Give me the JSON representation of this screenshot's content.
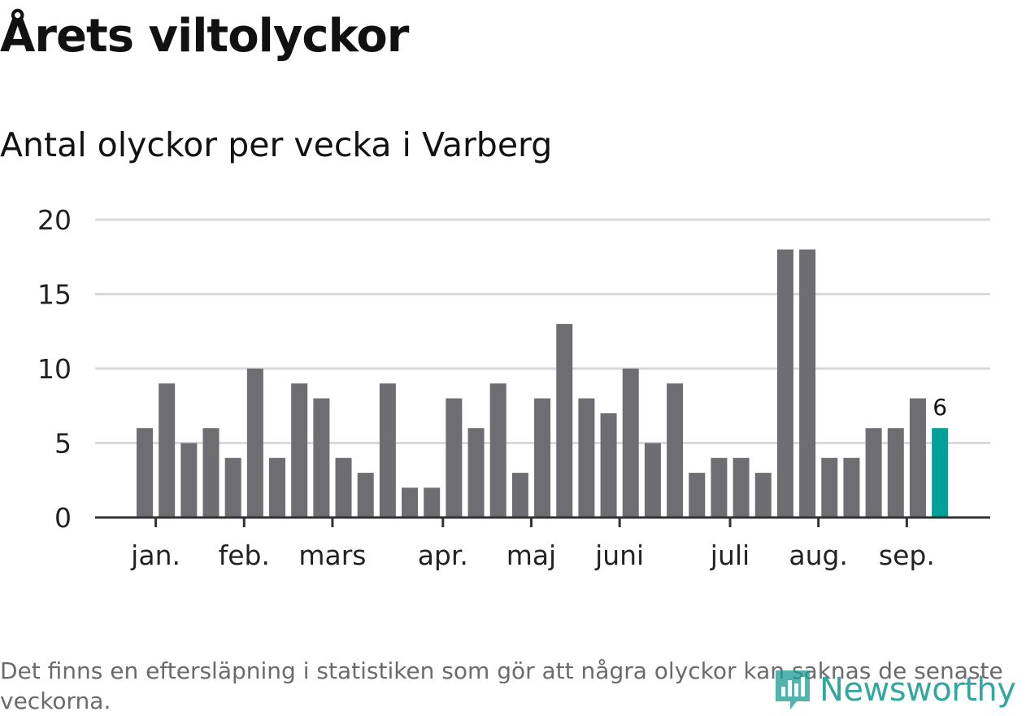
{
  "header": {
    "title": "Årets viltolyckor",
    "subtitle": "Antal olyckor per vecka i Varberg"
  },
  "footnote": "Det finns en eftersläpning i statistiken som gör att några olyckor kan saknas de senaste veckorna.",
  "brand": {
    "name": "Newsworthy",
    "icon": "newsworthy-logo-icon",
    "color": "#1d9e94"
  },
  "chart_data": {
    "type": "bar",
    "title": "",
    "xlabel": "",
    "ylabel": "",
    "ylim": [
      0,
      20
    ],
    "yticks": [
      0,
      5,
      10,
      15,
      20
    ],
    "grid": true,
    "month_labels": [
      {
        "label": "jan.",
        "week_index": 0.5
      },
      {
        "label": "feb.",
        "week_index": 4.5
      },
      {
        "label": "mars",
        "week_index": 8.5
      },
      {
        "label": "apr.",
        "week_index": 13.5
      },
      {
        "label": "maj",
        "week_index": 17.5
      },
      {
        "label": "juni",
        "week_index": 21.5
      },
      {
        "label": "juli",
        "week_index": 26.5
      },
      {
        "label": "aug.",
        "week_index": 30.5
      },
      {
        "label": "sep.",
        "week_index": 34.5
      }
    ],
    "values": [
      6,
      9,
      5,
      6,
      4,
      10,
      4,
      9,
      8,
      4,
      3,
      9,
      2,
      2,
      8,
      6,
      9,
      3,
      8,
      13,
      8,
      7,
      10,
      5,
      9,
      3,
      4,
      4,
      3,
      18,
      18,
      4,
      4,
      6,
      6,
      8,
      6
    ],
    "highlight_index": 36,
    "highlight_label": "6",
    "colors": {
      "bar": "#6e6d72",
      "highlight": "#00a19a",
      "grid": "#d9d9d9",
      "axis": "#333333"
    }
  }
}
